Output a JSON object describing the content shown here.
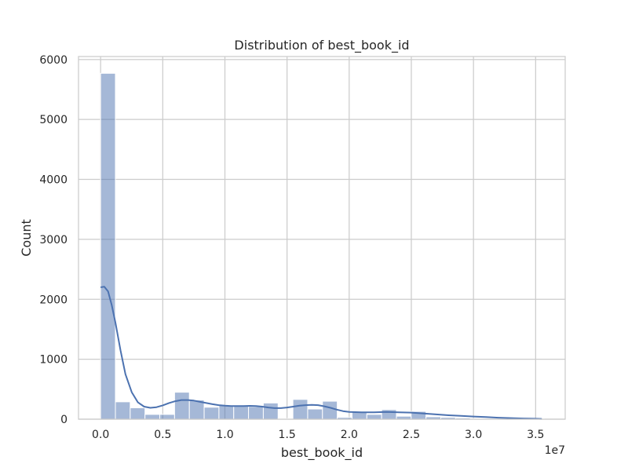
{
  "chart_data": {
    "type": "bar",
    "title": "Distribution of best_book_id",
    "xlabel": "best_book_id",
    "ylabel": "Count",
    "x_offset_label": "1e7",
    "xlim": [
      -1780000,
      37380000
    ],
    "ylim": [
      0,
      6050
    ],
    "x_ticks": [
      0,
      0.5,
      1.0,
      1.5,
      2.0,
      2.5,
      3.0,
      3.5
    ],
    "x_tick_labels": [
      "0.0",
      "0.5",
      "1.0",
      "1.5",
      "2.0",
      "2.5",
      "3.0",
      "3.5"
    ],
    "y_ticks": [
      0,
      1000,
      2000,
      3000,
      4000,
      5000,
      6000
    ],
    "y_tick_labels": [
      "0",
      "1000",
      "2000",
      "3000",
      "4000",
      "5000",
      "6000"
    ],
    "grid": true,
    "bin_width": 1190000,
    "bins_start": [
      0,
      1190000,
      2380000,
      3570000,
      4760000,
      5950000,
      7140000,
      8330000,
      9520000,
      10710000,
      11900000,
      13090000,
      14280000,
      15470000,
      16660000,
      17850000,
      19040000,
      20230000,
      21420000,
      22610000,
      23800000,
      24990000,
      26180000,
      27370000,
      28560000,
      29750000,
      30940000,
      32130000,
      33320000,
      34510000
    ],
    "values": [
      5770,
      290,
      190,
      80,
      80,
      450,
      320,
      200,
      230,
      220,
      210,
      270,
      10,
      330,
      170,
      300,
      30,
      120,
      80,
      160,
      50,
      130,
      40,
      30,
      20,
      10,
      10,
      10,
      5,
      5
    ],
    "kde": {
      "x": [
        0,
        300000,
        600000,
        900000,
        1200000,
        1600000,
        2000000,
        2500000,
        3000000,
        3500000,
        4000000,
        4500000,
        5000000,
        5500000,
        6000000,
        6500000,
        7000000,
        7500000,
        8000000,
        8500000,
        9000000,
        9500000,
        10000000,
        10500000,
        11000000,
        11500000,
        12000000,
        12500000,
        13000000,
        13500000,
        14000000,
        14500000,
        15000000,
        15500000,
        16000000,
        16500000,
        17000000,
        17500000,
        18000000,
        18500000,
        19000000,
        19500000,
        20000000,
        21000000,
        22000000,
        23000000,
        24000000,
        25000000,
        26000000,
        27000000,
        28000000,
        29000000,
        30000000,
        31000000,
        32000000,
        33000000,
        34000000,
        35000000,
        35500000
      ],
      "y": [
        2200,
        2210,
        2130,
        1900,
        1600,
        1150,
        750,
        450,
        280,
        210,
        190,
        200,
        230,
        270,
        300,
        320,
        320,
        310,
        290,
        270,
        250,
        235,
        225,
        220,
        220,
        220,
        222,
        220,
        210,
        195,
        185,
        185,
        195,
        210,
        225,
        235,
        240,
        235,
        215,
        190,
        160,
        135,
        120,
        115,
        115,
        120,
        115,
        110,
        95,
        80,
        65,
        55,
        45,
        35,
        25,
        18,
        12,
        8,
        5
      ]
    },
    "bar_color": "#4c72b0",
    "bar_opacity": 0.5,
    "line_color": "#4c72b0",
    "grid_color": "#cccccc",
    "axis_color": "#cccccc"
  }
}
